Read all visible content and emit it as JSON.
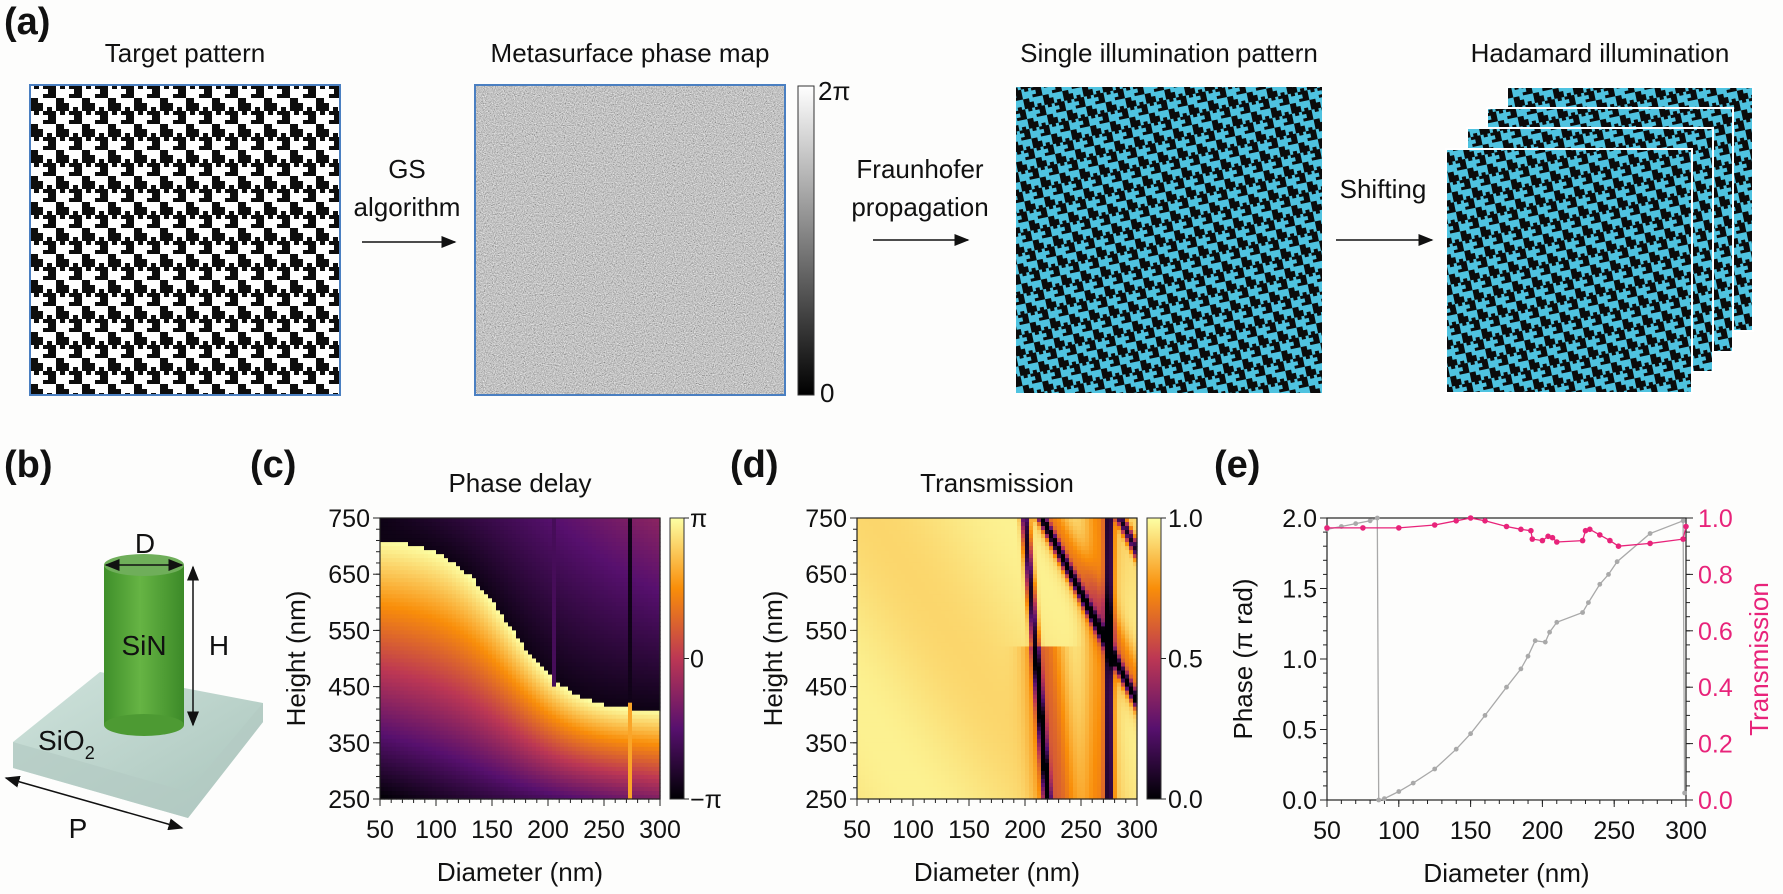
{
  "panel_labels": {
    "a": "(a)",
    "b": "(b)",
    "c": "(c)",
    "d": "(d)",
    "e": "(e)"
  },
  "panel_a": {
    "titles": [
      "Target pattern",
      "Metasurface phase map",
      "Single illumination pattern",
      "Hadamard illumination"
    ],
    "steps": {
      "gs": [
        "GS",
        "algorithm"
      ],
      "fraunhofer": [
        "Fraunhofer",
        "propagation"
      ],
      "shifting": "Shifting"
    },
    "colorbar": {
      "max": "2π",
      "min": "0"
    },
    "colors": {
      "pattern_light": "#4fc3e0",
      "frame": "#4a7fc1"
    }
  },
  "panel_b": {
    "diameter": "D",
    "height": "H",
    "pillar": "SiN",
    "substrate": "SiO",
    "substrate_sub": "2",
    "period": "P"
  },
  "chart_data": [
    {
      "type": "heatmap",
      "title": "Phase delay",
      "xlabel": "Diameter (nm)",
      "ylabel": "Height (nm)",
      "xlim": [
        50,
        300
      ],
      "ylim": [
        250,
        750
      ],
      "xticks": [
        "50",
        "100",
        "150",
        "200",
        "250",
        "300"
      ],
      "yticks": [
        "250",
        "350",
        "450",
        "550",
        "650",
        "750"
      ],
      "colorbar": {
        "ticks": [
          "π",
          "0",
          "−π"
        ],
        "range": [
          -3.1416,
          3.1416
        ]
      },
      "colormap": "inferno"
    },
    {
      "type": "heatmap",
      "title": "Transmission",
      "xlabel": "Diameter (nm)",
      "ylabel": "Height (nm)",
      "xlim": [
        50,
        300
      ],
      "ylim": [
        250,
        750
      ],
      "xticks": [
        "50",
        "100",
        "150",
        "200",
        "250",
        "300"
      ],
      "yticks": [
        "250",
        "350",
        "450",
        "550",
        "650",
        "750"
      ],
      "colorbar": {
        "ticks": [
          "1.0",
          "0.5",
          "0.0"
        ],
        "range": [
          0,
          1
        ]
      },
      "colormap": "inferno"
    },
    {
      "type": "line",
      "xlabel": "Diameter (nm)",
      "ylabel": "Phase (π rad)",
      "y2label": "Transmission",
      "xlim": [
        50,
        300
      ],
      "ylim": [
        0,
        2
      ],
      "y2lim": [
        0,
        1
      ],
      "xticks": [
        "50",
        "100",
        "150",
        "200",
        "250",
        "300"
      ],
      "yticks": [
        "0.0",
        "0.5",
        "1.0",
        "1.5",
        "2.0"
      ],
      "y2ticks": [
        "0.0",
        "0.2",
        "0.4",
        "0.6",
        "0.8",
        "1.0"
      ],
      "series": [
        {
          "name": "Phase",
          "axis": "left",
          "color": "#a9a9a9",
          "x": [
            50,
            60,
            70,
            80,
            85,
            86,
            90,
            100,
            110,
            125,
            140,
            150,
            160,
            175,
            185,
            190,
            195,
            202,
            205,
            210,
            228,
            232,
            240,
            246,
            252,
            275,
            298,
            299
          ],
          "y": [
            1.92,
            1.94,
            1.96,
            1.98,
            2.0,
            0.0,
            0.01,
            0.06,
            0.12,
            0.22,
            0.36,
            0.47,
            0.6,
            0.8,
            0.93,
            1.02,
            1.13,
            1.12,
            1.19,
            1.26,
            1.33,
            1.4,
            1.53,
            1.6,
            1.69,
            1.89,
            1.98,
            0.05
          ]
        },
        {
          "name": "Transmission",
          "axis": "right",
          "color": "#e8237a",
          "x": [
            50,
            75,
            100,
            125,
            140,
            150,
            160,
            175,
            185,
            192,
            193,
            200,
            204,
            207,
            210,
            228,
            230,
            233,
            240,
            247,
            253,
            275,
            298,
            300
          ],
          "y": [
            0.965,
            0.965,
            0.965,
            0.975,
            0.99,
            1.0,
            0.99,
            0.97,
            0.96,
            0.955,
            0.925,
            0.92,
            0.935,
            0.93,
            0.915,
            0.92,
            0.955,
            0.96,
            0.94,
            0.92,
            0.9,
            0.91,
            0.925,
            0.97
          ]
        }
      ]
    }
  ]
}
